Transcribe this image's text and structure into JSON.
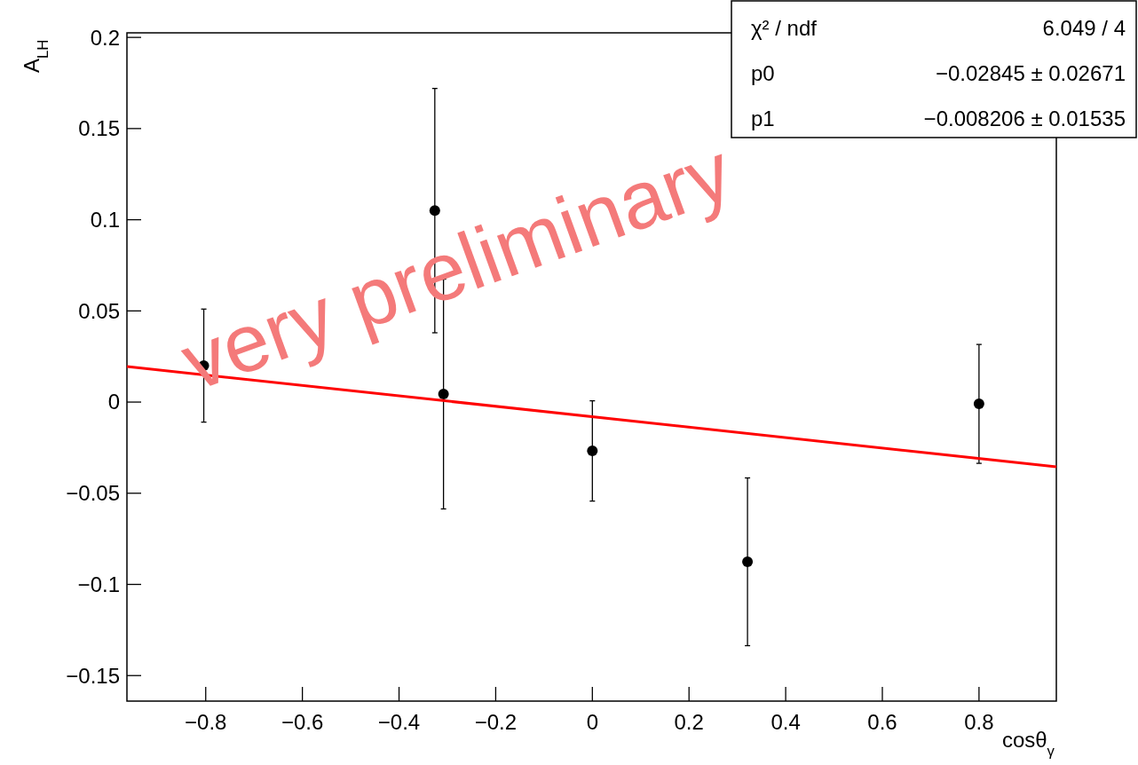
{
  "chart_data": {
    "type": "scatter",
    "xlabel": "cosθ$_{γ}$",
    "ylabel": "A$_{LH}$",
    "xlim": [
      -0.963,
      0.96
    ],
    "ylim": [
      -0.164,
      0.2025
    ],
    "xticks": [
      {
        "value": -0.8,
        "label": "−0.8"
      },
      {
        "value": -0.6,
        "label": "−0.6"
      },
      {
        "value": -0.4,
        "label": "−0.4"
      },
      {
        "value": -0.2,
        "label": "−0.2"
      },
      0,
      0.2,
      0.4,
      0.6,
      0.8
    ],
    "yticks": [
      {
        "value": -0.15,
        "label": "−0.15"
      },
      {
        "value": -0.1,
        "label": "−0.1"
      },
      {
        "value": -0.05,
        "label": "−0.05"
      },
      0,
      0.05,
      0.1,
      0.15,
      0.2
    ],
    "grid": false,
    "series": [
      {
        "marker": "circle",
        "color": "#000000",
        "x": [
          -0.804,
          -0.326,
          -0.308,
          0,
          0.321,
          0.8
        ],
        "values": [
          0.02,
          0.105,
          0.0044,
          -0.0268,
          -0.0876,
          -0.001
        ],
        "errors": [
          0.031,
          0.067,
          0.063,
          0.0275,
          0.046,
          0.0326
        ]
      },
      {
        "type": "line",
        "color": "#ff0000",
        "x": [
          -0.963,
          0.96
        ],
        "values": [
          0.0195,
          -0.0355
        ]
      }
    ],
    "annotations": [
      "χ² / ndf",
      "6.049 / 4",
      "p0",
      "−0.02845 ± 0.02671",
      "p1",
      "−0.008206 ± 0.01535",
      "very preliminary"
    ]
  }
}
